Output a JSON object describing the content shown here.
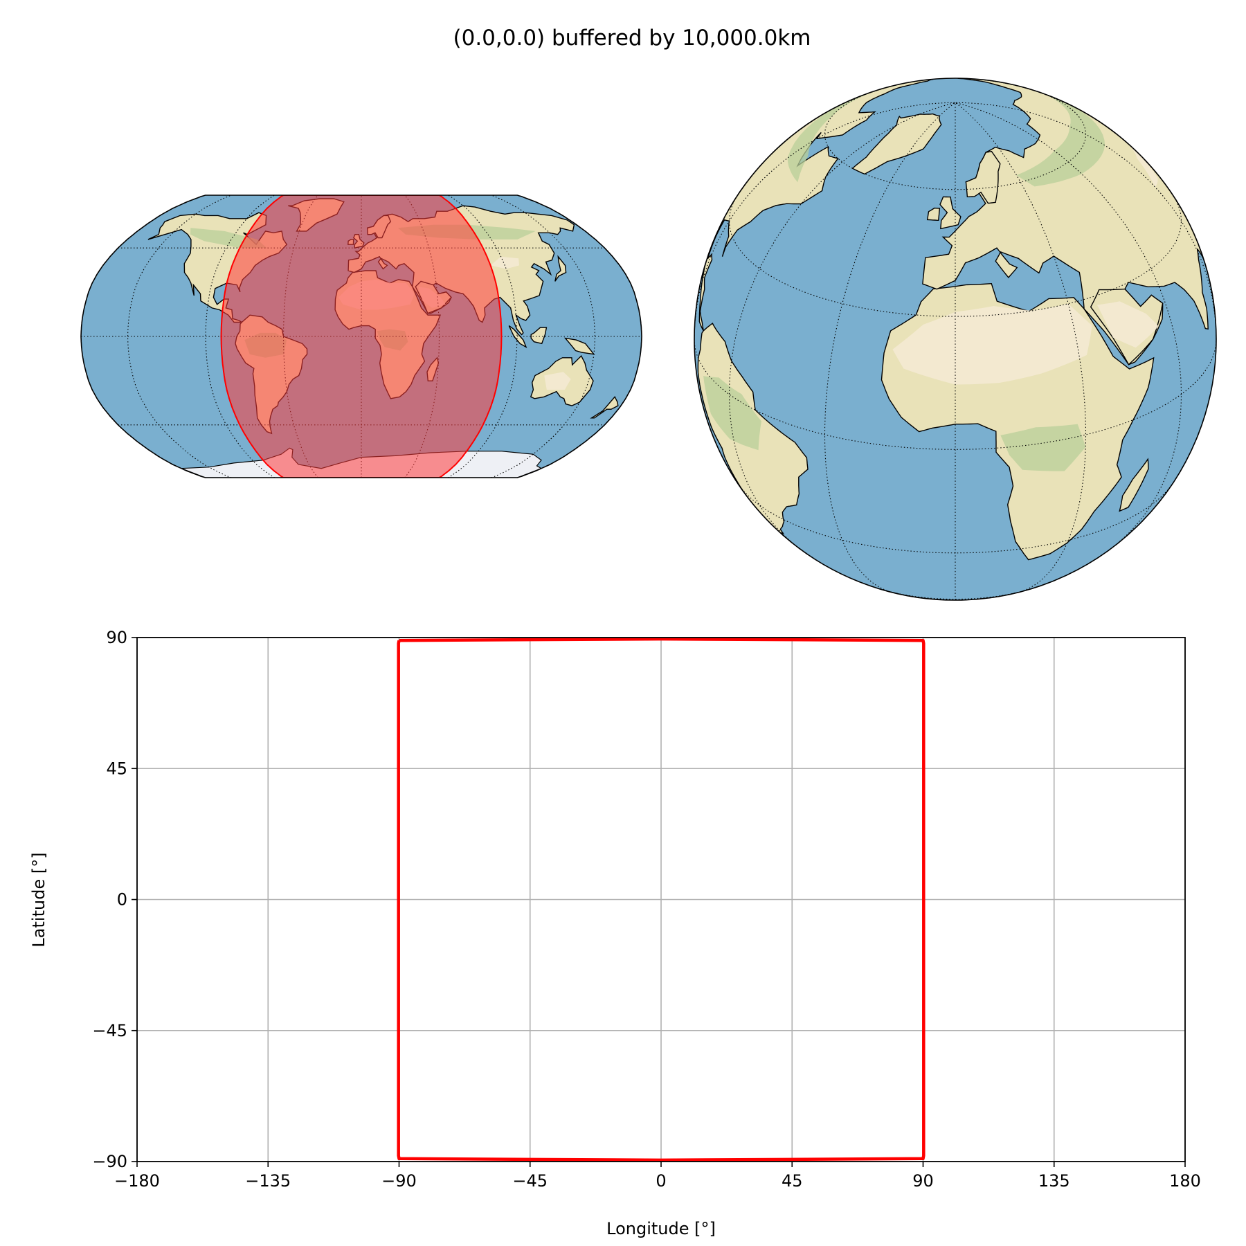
{
  "figure": {
    "title": "(0.0,0.0) buffered by 10,000.0km"
  },
  "colors": {
    "ocean": "#7aafcf",
    "land": "#e9e2b8",
    "desert": "#f4ead4",
    "forest": "#b8cf9a",
    "ice": "#eef0f5",
    "buffer_fill": "#ff3b3b",
    "buffer_edge": "#ff0000",
    "grid": "#b0b0b0"
  },
  "maps": [
    {
      "projection": "Robinson",
      "central_longitude": 0,
      "buffer_shown": true
    },
    {
      "projection": "Orthographic",
      "central_longitude": 0,
      "central_latitude": 25,
      "buffer_shown": false
    }
  ],
  "chart_data": {
    "type": "line",
    "title": "",
    "xlabel": "Longitude [°]",
    "ylabel": "Latitude [°]",
    "xlim": [
      -180,
      180
    ],
    "ylim": [
      -90,
      90
    ],
    "xticks": [
      -180,
      -135,
      -90,
      -45,
      0,
      45,
      90,
      135,
      180
    ],
    "yticks": [
      -90,
      -45,
      0,
      45,
      90
    ],
    "xtick_labels": [
      "−180",
      "−135",
      "−90",
      "−45",
      "0",
      "45",
      "90",
      "135",
      "180"
    ],
    "ytick_labels": [
      "−90",
      "−45",
      "0",
      "45",
      "90"
    ],
    "grid": true,
    "series": [
      {
        "color": "#ff0000",
        "points": [
          [
            -90,
            89
          ],
          [
            0,
            89.5
          ],
          [
            90,
            89
          ],
          [
            90.2,
            88
          ],
          [
            90.2,
            -88
          ],
          [
            90,
            -89
          ],
          [
            0,
            -89.5
          ],
          [
            -90,
            -89
          ],
          [
            -90.2,
            -88
          ],
          [
            -90.2,
            88
          ],
          [
            -90,
            89
          ]
        ]
      }
    ]
  }
}
